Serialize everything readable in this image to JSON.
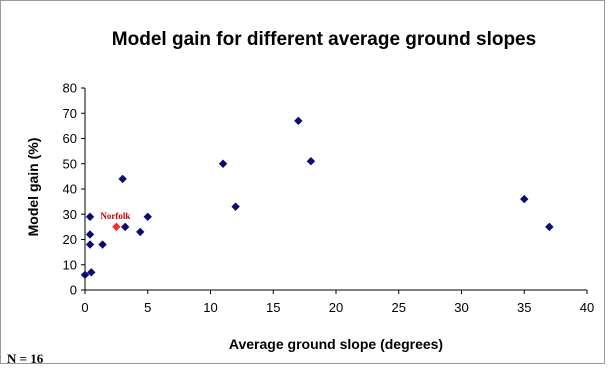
{
  "chart_data": {
    "type": "scatter",
    "title": "Model gain for different average ground slopes",
    "xlabel": "Average ground slope (degrees)",
    "ylabel": "Model gain (%)",
    "xlim": [
      0,
      40
    ],
    "ylim": [
      0,
      80
    ],
    "xticks": [
      0,
      5,
      10,
      15,
      20,
      25,
      30,
      35,
      40
    ],
    "yticks": [
      0,
      10,
      20,
      30,
      40,
      50,
      60,
      70,
      80
    ],
    "grid": "none",
    "legend": "none",
    "series": [
      {
        "color": "#0a0a6e",
        "marker": "diamond",
        "points": [
          {
            "x": 0,
            "y": 6
          },
          {
            "x": 0.5,
            "y": 7
          },
          {
            "x": 0.4,
            "y": 18
          },
          {
            "x": 0.4,
            "y": 22
          },
          {
            "x": 0.4,
            "y": 29
          },
          {
            "x": 1.4,
            "y": 18
          },
          {
            "x": 3,
            "y": 44
          },
          {
            "x": 3.2,
            "y": 25
          },
          {
            "x": 4.4,
            "y": 23
          },
          {
            "x": 5,
            "y": 29
          },
          {
            "x": 11,
            "y": 50
          },
          {
            "x": 12,
            "y": 33
          },
          {
            "x": 17,
            "y": 67
          },
          {
            "x": 18,
            "y": 51
          },
          {
            "x": 35,
            "y": 36
          },
          {
            "x": 37,
            "y": 25
          }
        ]
      },
      {
        "color": "#ff2a2a",
        "marker": "diamond",
        "points": [
          {
            "x": 2.5,
            "y": 25
          }
        ]
      }
    ],
    "annotations": [
      {
        "text": "Norfolk",
        "x": 2.5,
        "y": 25,
        "color": "#cc0000"
      }
    ],
    "footnote": "N = 16"
  }
}
